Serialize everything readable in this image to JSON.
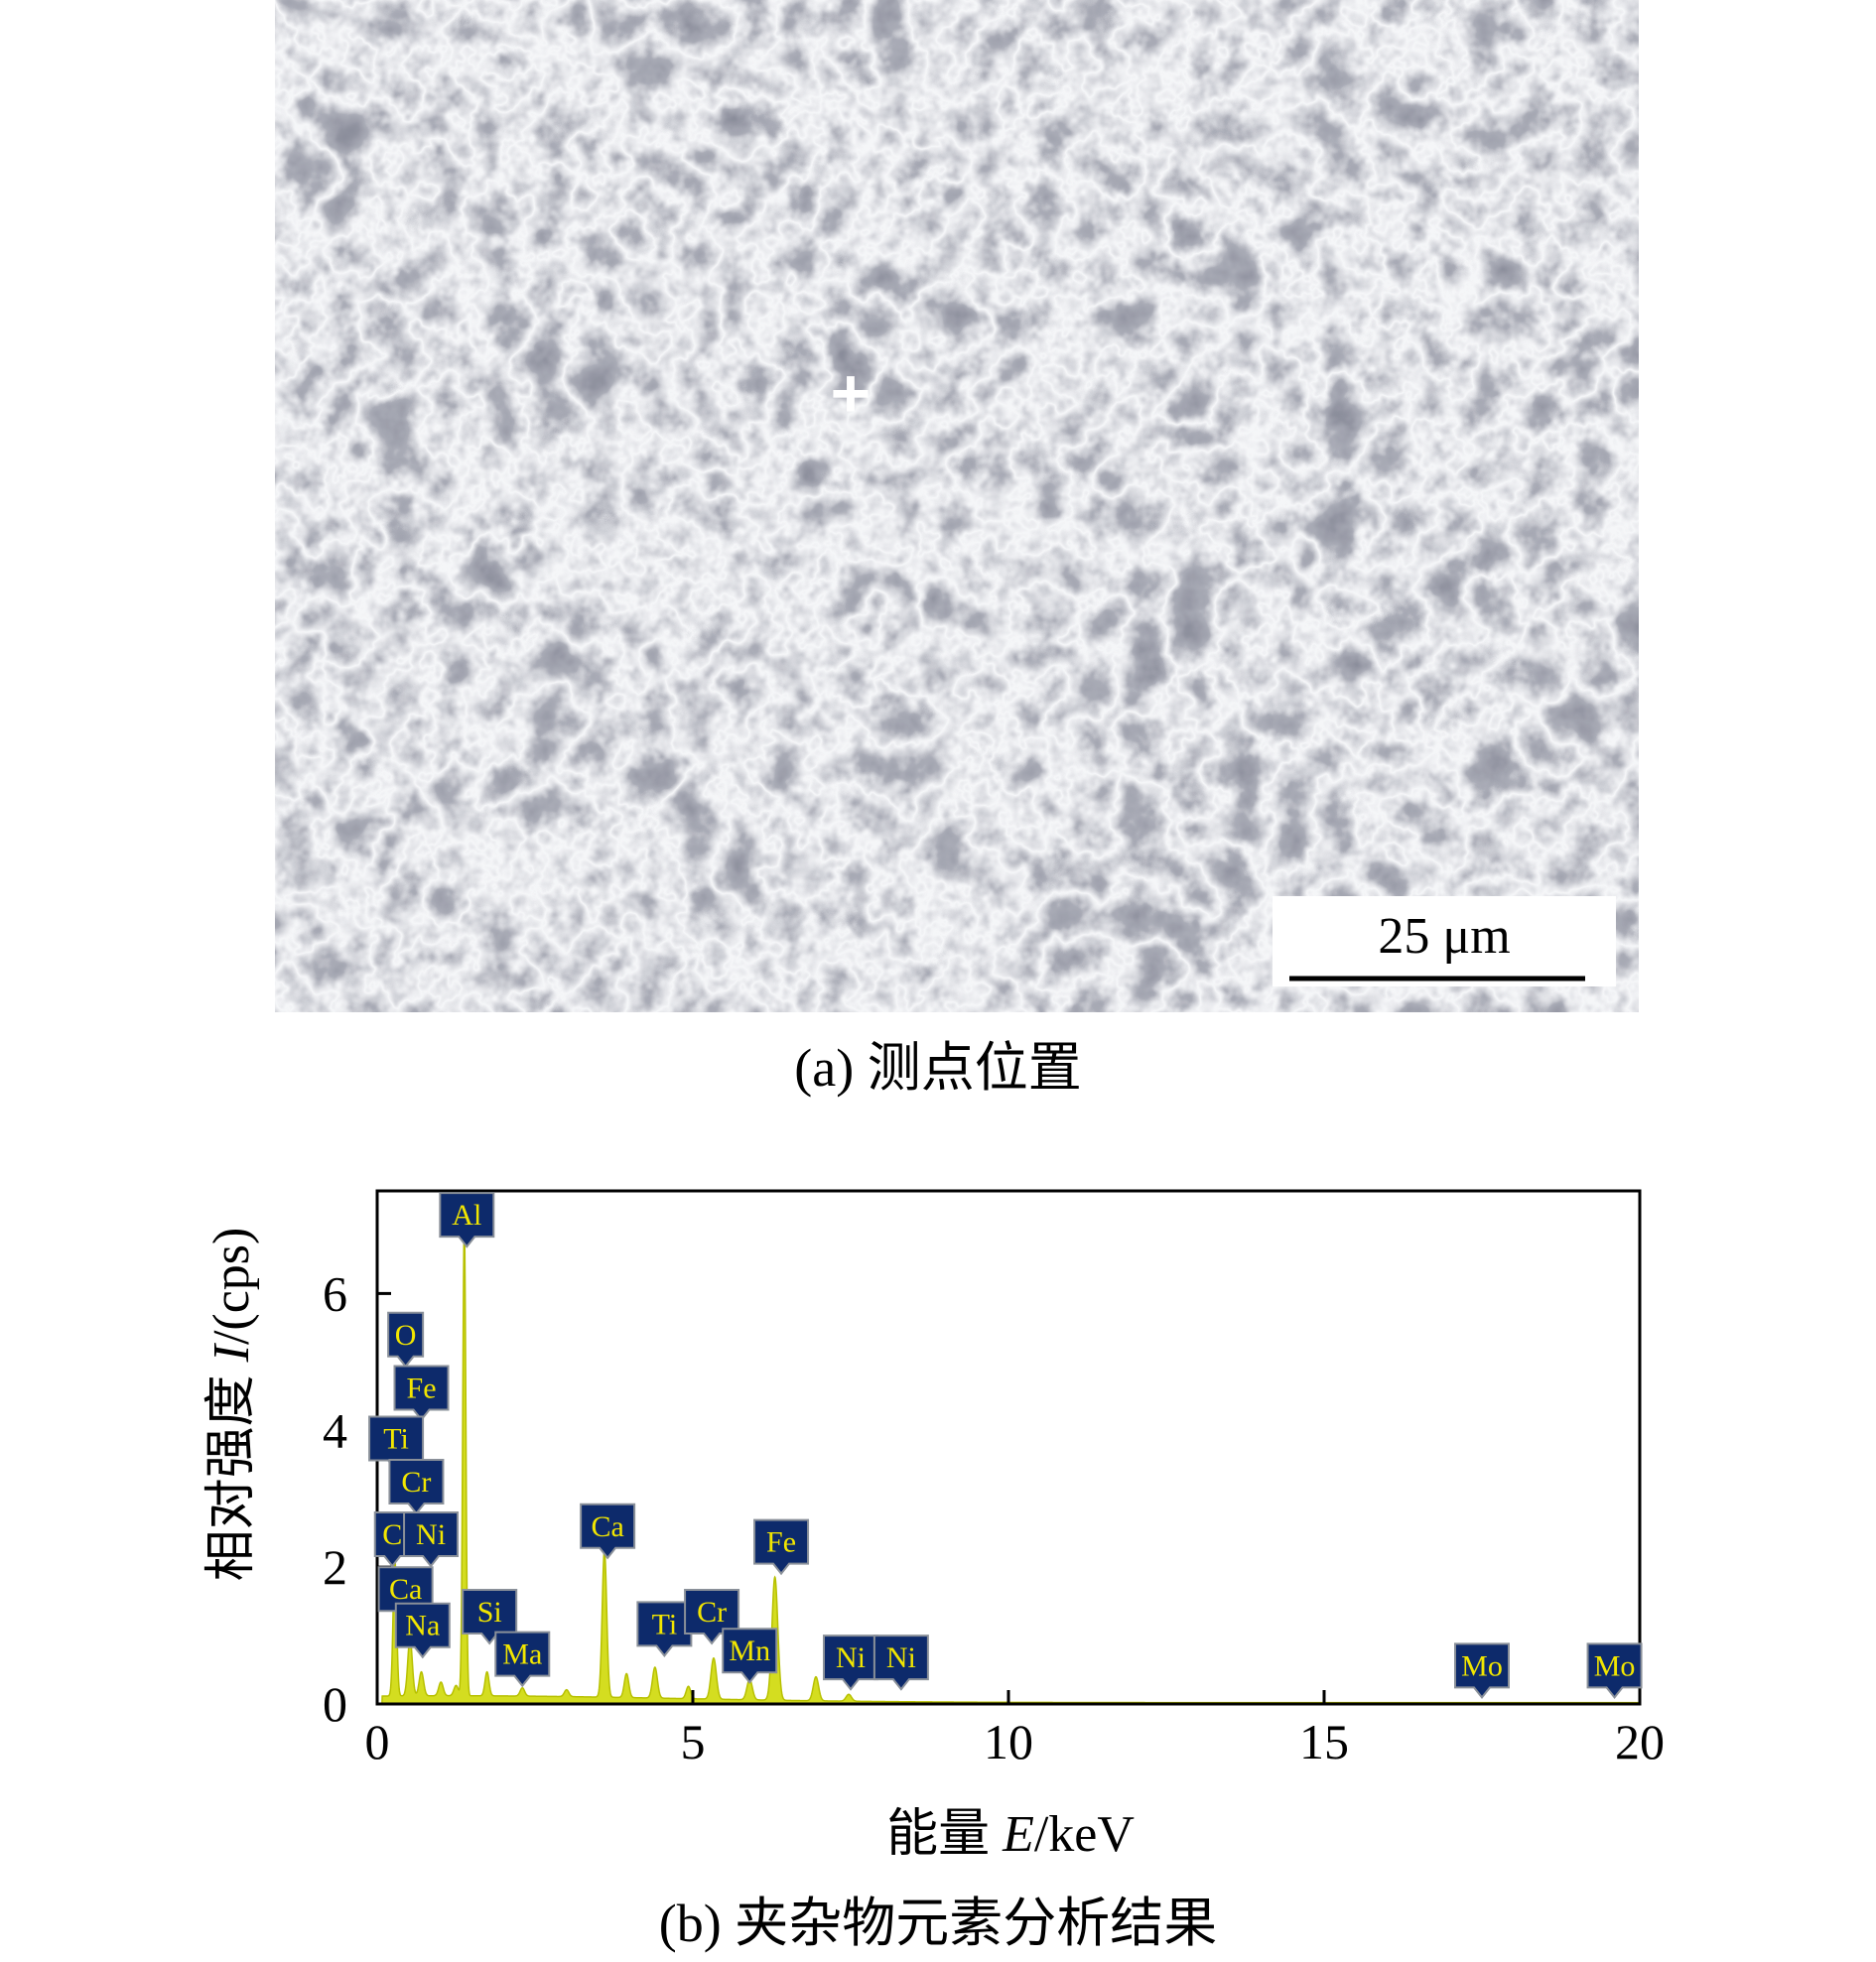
{
  "panel_a": {
    "caption": "(a) 测点位置",
    "scale_bar_label": "25 μm",
    "marker": "+"
  },
  "panel_b": {
    "caption": "(b) 夹杂物元素分析结果"
  },
  "chart_data": {
    "type": "area",
    "title": "",
    "xlabel": "能量 E/keV",
    "ylabel": "相对强度 I/(cps)",
    "xlim": [
      0,
      20
    ],
    "ylim": [
      0,
      7.5
    ],
    "xticks": [
      0,
      5,
      10,
      15,
      20
    ],
    "yticks": [
      0,
      2,
      4,
      6
    ],
    "grid": false,
    "legend": "none",
    "series_color": "#d4dd20",
    "label_box_color": "#0d2a6b",
    "label_text_color": "#f2e600",
    "baseline": 0.1,
    "peaks": [
      {
        "x": 0.28,
        "y": 2.0,
        "w": 0.04
      },
      {
        "x": 0.52,
        "y": 0.85,
        "w": 0.05
      },
      {
        "x": 0.7,
        "y": 0.35,
        "w": 0.05
      },
      {
        "x": 1.01,
        "y": 0.2,
        "w": 0.05
      },
      {
        "x": 1.25,
        "y": 0.15,
        "w": 0.05
      },
      {
        "x": 1.38,
        "y": 6.85,
        "w": 0.035
      },
      {
        "x": 1.74,
        "y": 0.35,
        "w": 0.045
      },
      {
        "x": 2.3,
        "y": 0.12,
        "w": 0.05
      },
      {
        "x": 3.0,
        "y": 0.1,
        "w": 0.05
      },
      {
        "x": 3.6,
        "y": 2.15,
        "w": 0.05
      },
      {
        "x": 3.95,
        "y": 0.35,
        "w": 0.05
      },
      {
        "x": 4.4,
        "y": 0.45,
        "w": 0.055
      },
      {
        "x": 4.93,
        "y": 0.18,
        "w": 0.05
      },
      {
        "x": 5.33,
        "y": 0.6,
        "w": 0.06
      },
      {
        "x": 5.9,
        "y": 0.3,
        "w": 0.06
      },
      {
        "x": 6.3,
        "y": 1.8,
        "w": 0.065
      },
      {
        "x": 6.95,
        "y": 0.35,
        "w": 0.06
      },
      {
        "x": 7.47,
        "y": 0.1,
        "w": 0.06
      }
    ],
    "peak_labels": [
      {
        "label": "Al",
        "x": 1.42,
        "y": 7.15
      },
      {
        "label": "O",
        "x": 0.45,
        "y": 5.4
      },
      {
        "label": "Fe",
        "x": 0.7,
        "y": 4.62
      },
      {
        "label": "Ti",
        "x": 0.3,
        "y": 3.88
      },
      {
        "label": "Cr",
        "x": 0.62,
        "y": 3.25
      },
      {
        "label": "C",
        "x": 0.24,
        "y": 2.48
      },
      {
        "label": "Ni",
        "x": 0.85,
        "y": 2.48
      },
      {
        "label": "Ca",
        "x": 0.45,
        "y": 1.68
      },
      {
        "label": "Na",
        "x": 0.72,
        "y": 1.15
      },
      {
        "label": "Ca",
        "x": 3.65,
        "y": 2.6
      },
      {
        "label": "Si",
        "x": 1.78,
        "y": 1.35
      },
      {
        "label": "Ma",
        "x": 2.3,
        "y": 0.73
      },
      {
        "label": "Ti",
        "x": 4.55,
        "y": 1.17
      },
      {
        "label": "Cr",
        "x": 5.3,
        "y": 1.35
      },
      {
        "label": "Mn",
        "x": 5.9,
        "y": 0.78
      },
      {
        "label": "Fe",
        "x": 6.4,
        "y": 2.37
      },
      {
        "label": "Ni",
        "x": 7.5,
        "y": 0.68
      },
      {
        "label": "Ni",
        "x": 8.3,
        "y": 0.68
      },
      {
        "label": "Mo",
        "x": 17.5,
        "y": 0.56
      },
      {
        "label": "Mo",
        "x": 19.6,
        "y": 0.56
      }
    ]
  }
}
